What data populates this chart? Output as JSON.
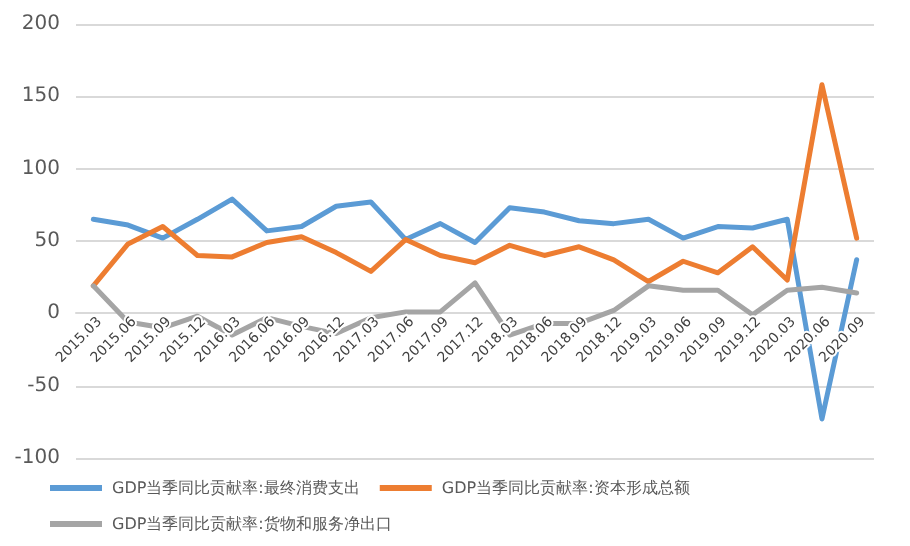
{
  "chart_data": {
    "type": "line",
    "categories": [
      "2015.03",
      "2015.06",
      "2015.09",
      "2015.12",
      "2016.03",
      "2016.06",
      "2016.09",
      "2016.12",
      "2017.03",
      "2017.06",
      "2017.09",
      "2017.12",
      "2018.03",
      "2018.06",
      "2018.09",
      "2018.12",
      "2019.03",
      "2019.06",
      "2019.09",
      "2019.12",
      "2020.03",
      "2020.06",
      "2020.09"
    ],
    "series": [
      {
        "name": "GDP当季同比贡献率:最终消费支出",
        "color": "#5b9bd5",
        "values": [
          65,
          61,
          52,
          65,
          79,
          57,
          60,
          74,
          77,
          51,
          62,
          49,
          73,
          70,
          64,
          62,
          65,
          52,
          60,
          59,
          65,
          -73,
          37
        ]
      },
      {
        "name": "GDP当季同比贡献率:资本形成总额",
        "color": "#ed7d31",
        "values": [
          19,
          48,
          60,
          40,
          39,
          49,
          53,
          42,
          29,
          51,
          40,
          35,
          47,
          40,
          46,
          37,
          22,
          36,
          28,
          46,
          23,
          158,
          52
        ]
      },
      {
        "name": "GDP当季同比贡献率:货物和服务净出口",
        "color": "#a5a5a5",
        "values": [
          19,
          -6,
          -10,
          -2,
          -15,
          -3,
          -9,
          -14,
          -3,
          1,
          1,
          21,
          -15,
          -7,
          -7,
          2,
          19,
          16,
          16,
          -1,
          16,
          18,
          14
        ]
      }
    ],
    "ylim": [
      -100,
      200
    ],
    "yticks": [
      -100,
      -50,
      0,
      50,
      100,
      150,
      200
    ],
    "grid": "y",
    "legend": "bottom",
    "marker": "none",
    "line_style": "solid"
  }
}
